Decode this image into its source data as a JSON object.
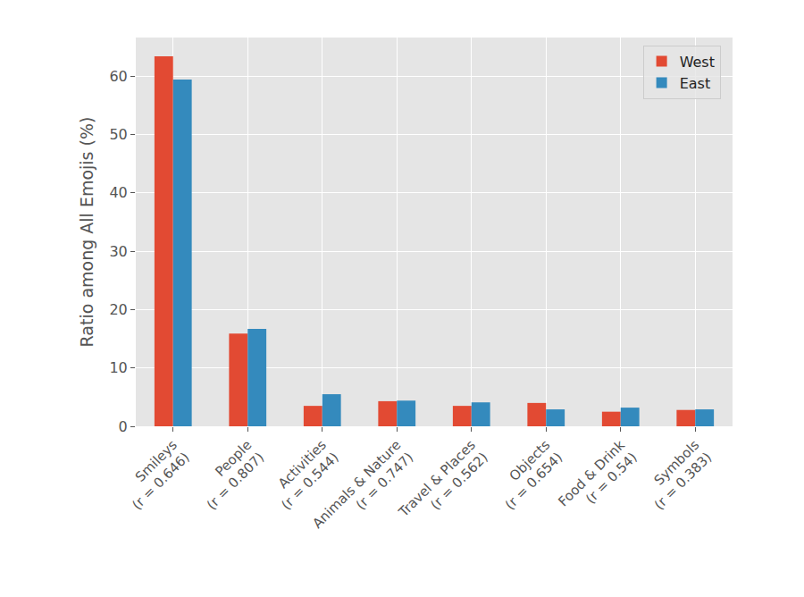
{
  "chart_data": {
    "type": "bar",
    "ylabel": "Ratio among All Emojis (%)",
    "categories": [
      "Smileys\n(r = 0.646)",
      "People\n(r = 0.807)",
      "Activities\n(r = 0.544)",
      "Animals & Nature\n(r = 0.747)",
      "Travel & Places\n(r = 0.562)",
      "Objects\n(r = 0.654)",
      "Food & Drink\n(r = 0.54)",
      "Symbols\n(r = 0.383)"
    ],
    "series": [
      {
        "name": "West",
        "color": "#E24A33",
        "values": [
          63.4,
          15.9,
          3.5,
          4.3,
          3.5,
          4.0,
          2.5,
          2.8
        ]
      },
      {
        "name": "East",
        "color": "#348ABD",
        "values": [
          59.4,
          16.7,
          5.5,
          4.4,
          4.1,
          2.9,
          3.2,
          2.9
        ]
      }
    ],
    "ylim": [
      0,
      66.6
    ],
    "yticks": [
      0,
      10,
      20,
      30,
      40,
      50,
      60
    ],
    "grid": true,
    "legend": "upper right"
  }
}
